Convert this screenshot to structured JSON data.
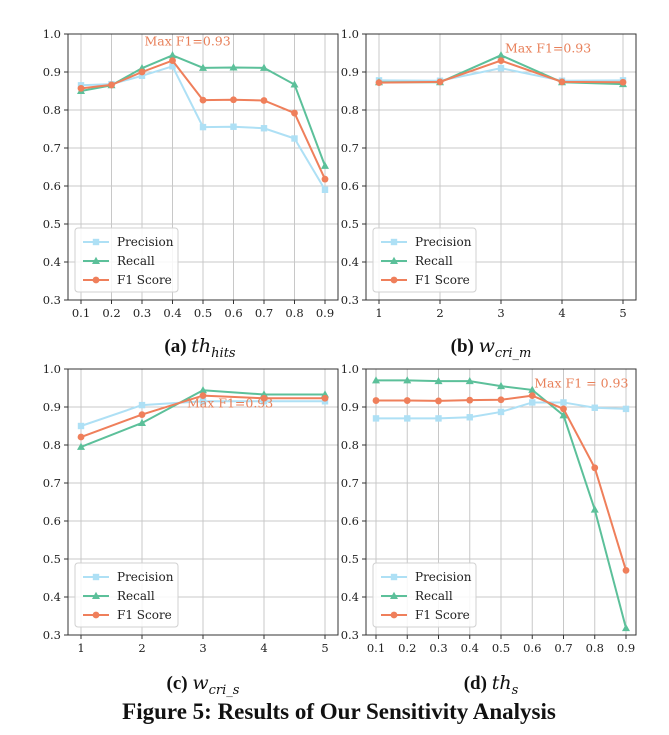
{
  "figure_caption": "Figure 5: Results of Our Sensitivity Analysis",
  "colors": {
    "precision": "#aee0f5",
    "recall": "#5cc09a",
    "f1": "#ef7f5b",
    "grid": "#c8c8c8"
  },
  "chart_data": [
    {
      "type": "line",
      "label": "(a)",
      "var_main": "th",
      "var_sub": "hits",
      "x": [
        0.1,
        0.2,
        0.3,
        0.4,
        0.5,
        0.6,
        0.7,
        0.8,
        0.9
      ],
      "xticks": [
        "0.1",
        "0.2",
        "0.3",
        "0.4",
        "0.5",
        "0.6",
        "0.7",
        "0.8",
        "0.9"
      ],
      "ylim": [
        0.3,
        1.0
      ],
      "yticks": [
        "0.3",
        "0.4",
        "0.5",
        "0.6",
        "0.7",
        "0.8",
        "0.9",
        "1.0"
      ],
      "grid": true,
      "legend_position": "bottom-left",
      "series": [
        {
          "name": "Precision",
          "values": [
            0.865,
            0.868,
            0.89,
            0.915,
            0.755,
            0.756,
            0.752,
            0.725,
            0.59
          ]
        },
        {
          "name": "Recall",
          "values": [
            0.85,
            0.865,
            0.91,
            0.944,
            0.911,
            0.912,
            0.911,
            0.867,
            0.653
          ]
        },
        {
          "name": "F1 Score",
          "values": [
            0.857,
            0.866,
            0.9,
            0.93,
            0.826,
            0.827,
            0.825,
            0.792,
            0.618
          ]
        }
      ],
      "annotation": {
        "text": "Max F1=0.93",
        "x": 0.4,
        "y": 0.93
      }
    },
    {
      "type": "line",
      "label": "(b)",
      "var_main": "w",
      "var_sub": "cri_m",
      "x": [
        1,
        2,
        3,
        4,
        5
      ],
      "xticks": [
        "1",
        "2",
        "3",
        "4",
        "5"
      ],
      "ylim": [
        0.3,
        1.0
      ],
      "yticks": [
        "0.3",
        "0.4",
        "0.5",
        "0.6",
        "0.7",
        "0.8",
        "0.9",
        "1.0"
      ],
      "grid": true,
      "legend_position": "bottom-left",
      "series": [
        {
          "name": "Precision",
          "values": [
            0.878,
            0.877,
            0.91,
            0.877,
            0.878
          ]
        },
        {
          "name": "Recall",
          "values": [
            0.873,
            0.873,
            0.944,
            0.873,
            0.868
          ]
        },
        {
          "name": "F1 Score",
          "values": [
            0.872,
            0.874,
            0.93,
            0.874,
            0.873
          ]
        }
      ],
      "annotation": {
        "text": "Max F1=0.93",
        "x": 3,
        "y": 0.93
      }
    },
    {
      "type": "line",
      "label": "(c)",
      "var_main": "w",
      "var_sub": "cri_s",
      "x": [
        1,
        2,
        3,
        4,
        5
      ],
      "xticks": [
        "1",
        "2",
        "3",
        "4",
        "5"
      ],
      "ylim": [
        0.3,
        1.0
      ],
      "yticks": [
        "0.3",
        "0.4",
        "0.5",
        "0.6",
        "0.7",
        "0.8",
        "0.9",
        "1.0"
      ],
      "grid": true,
      "legend_position": "bottom-left",
      "series": [
        {
          "name": "Precision",
          "values": [
            0.85,
            0.905,
            0.915,
            0.915,
            0.915
          ]
        },
        {
          "name": "Recall",
          "values": [
            0.795,
            0.858,
            0.944,
            0.933,
            0.933
          ]
        },
        {
          "name": "F1 Score",
          "values": [
            0.821,
            0.88,
            0.93,
            0.923,
            0.923
          ]
        }
      ],
      "annotation": {
        "text": "Max F1=0.93",
        "x": 3,
        "y": 0.93
      }
    },
    {
      "type": "line",
      "label": "(d)",
      "var_main": "th",
      "var_sub": "s",
      "x": [
        0.1,
        0.2,
        0.3,
        0.4,
        0.5,
        0.6,
        0.7,
        0.8,
        0.9
      ],
      "xticks": [
        "0.1",
        "0.2",
        "0.3",
        "0.4",
        "0.5",
        "0.6",
        "0.7",
        "0.8",
        "0.9"
      ],
      "ylim": [
        0.3,
        1.0
      ],
      "yticks": [
        "0.3",
        "0.4",
        "0.5",
        "0.6",
        "0.7",
        "0.8",
        "0.9",
        "1.0"
      ],
      "grid": true,
      "legend_position": "bottom-left",
      "series": [
        {
          "name": "Precision",
          "values": [
            0.87,
            0.87,
            0.87,
            0.873,
            0.887,
            0.912,
            0.912,
            0.898,
            0.895
          ]
        },
        {
          "name": "Recall",
          "values": [
            0.97,
            0.97,
            0.968,
            0.968,
            0.955,
            0.945,
            0.878,
            0.63,
            0.318
          ]
        },
        {
          "name": "F1 Score",
          "values": [
            0.917,
            0.917,
            0.916,
            0.918,
            0.919,
            0.93,
            0.895,
            0.74,
            0.47
          ]
        }
      ],
      "annotation": {
        "text": "Max F1 = 0.93",
        "x": 0.6,
        "y": 0.93
      }
    }
  ]
}
